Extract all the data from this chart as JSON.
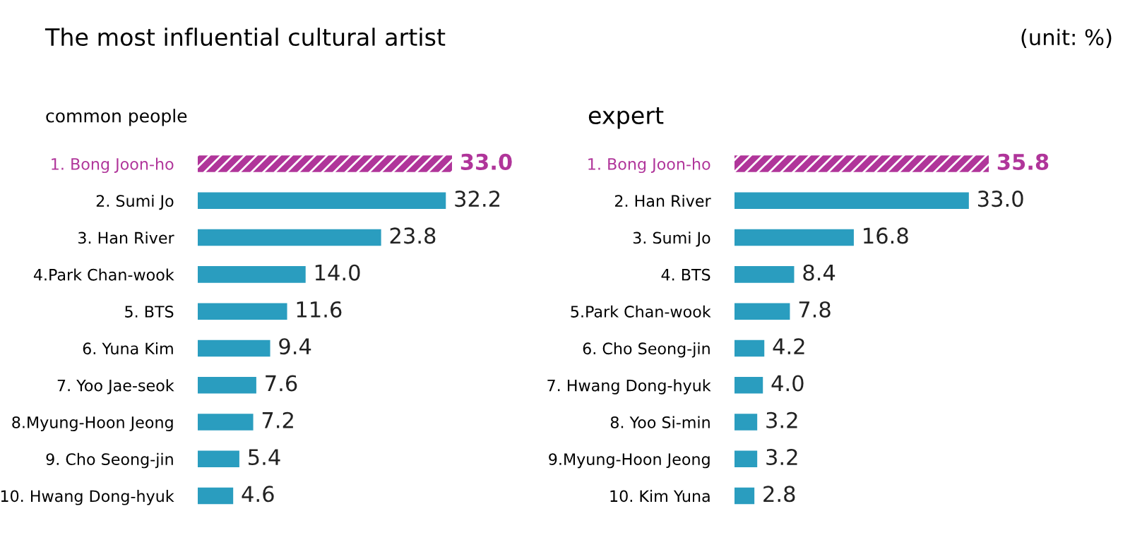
{
  "chart_data": [
    {
      "type": "bar",
      "orientation": "horizontal",
      "title": "The most influential cultural artist",
      "subtitle": "common people",
      "annotations": [
        "(unit: %)"
      ],
      "categories": [
        "1. Bong Joon-ho",
        "2. Sumi Jo",
        "3. Han River",
        "4.Park Chan-wook",
        "5. BTS",
        "6. Yuna Kim",
        "7. Yoo Jae-seok",
        "8.Myung-Hoon Jeong",
        "9. Cho Seong-jin",
        "10. Hwang Dong-hyuk"
      ],
      "values": [
        33.0,
        32.2,
        23.8,
        14.0,
        11.6,
        9.4,
        7.6,
        7.2,
        5.4,
        4.6
      ],
      "value_labels": [
        "33.0",
        "32.2",
        "23.8",
        "14.0",
        "11.6",
        "9.4",
        "7.6",
        "7.2",
        "5.4",
        "4.6"
      ],
      "colors": [
        "#b0359a",
        "#2a9dbf",
        "#2a9dbf",
        "#2a9dbf",
        "#2a9dbf",
        "#2a9dbf",
        "#2a9dbf",
        "#2a9dbf",
        "#2a9dbf",
        "#2a9dbf"
      ]
    },
    {
      "type": "bar",
      "orientation": "horizontal",
      "title": "expert",
      "categories": [
        "1. Bong Joon-ho",
        "2. Han River",
        "3. Sumi Jo",
        "4. BTS",
        "5.Park Chan-wook",
        "6. Cho Seong-jin",
        "7. Hwang Dong-hyuk",
        "8. Yoo Si-min",
        "9.Myung-Hoon Jeong",
        "10. Kim Yuna"
      ],
      "values": [
        35.8,
        33.0,
        16.8,
        8.4,
        7.8,
        4.2,
        4.0,
        3.2,
        3.2,
        2.8
      ],
      "value_labels": [
        "35.8",
        "33.0",
        "16.8",
        "8.4",
        "7.8",
        "4.2",
        "4.0",
        "3.2",
        "3.2",
        "2.8"
      ],
      "colors": [
        "#b0359a",
        "#2a9dbf",
        "#2a9dbf",
        "#2a9dbf",
        "#2a9dbf",
        "#2a9dbf",
        "#2a9dbf",
        "#2a9dbf",
        "#2a9dbf",
        "#2a9dbf"
      ]
    }
  ]
}
